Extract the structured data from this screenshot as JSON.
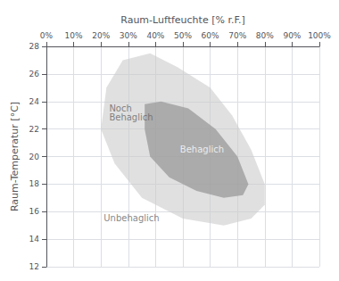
{
  "chart_data": {
    "type": "polygon",
    "xlabel": "Raum-Luftfeuchte [% r.F.]",
    "ylabel": "Raum-Temperatur [°C]",
    "xlim": [
      0,
      100
    ],
    "ylim": [
      12,
      28
    ],
    "xticks": [
      {
        "value": 0,
        "label": "0%"
      },
      {
        "value": 10,
        "label": "10%"
      },
      {
        "value": 20,
        "label": "20%"
      },
      {
        "value": 30,
        "label": "30%"
      },
      {
        "value": 40,
        "label": "40%"
      },
      {
        "value": 50,
        "label": "50%"
      },
      {
        "value": 60,
        "label": "60%"
      },
      {
        "value": 70,
        "label": "70%"
      },
      {
        "value": 80,
        "label": "80%"
      },
      {
        "value": 90,
        "label": "90%"
      },
      {
        "value": 100,
        "label": "100%"
      }
    ],
    "yticks": [
      12,
      14,
      16,
      18,
      20,
      22,
      24,
      26,
      28
    ],
    "grid": true,
    "series": [
      {
        "color": "#cccccc",
        "points": [
          [
            20,
            22
          ],
          [
            22,
            25
          ],
          [
            28,
            27
          ],
          [
            38,
            27.5
          ],
          [
            48,
            26.5
          ],
          [
            60,
            25.0
          ],
          [
            68,
            23.0
          ],
          [
            75,
            20.5
          ],
          [
            80,
            18.0
          ],
          [
            80,
            16.5
          ],
          [
            75,
            15.5
          ],
          [
            65,
            15.0
          ],
          [
            50,
            15.5
          ],
          [
            35,
            17.0
          ],
          [
            25,
            19.5
          ],
          [
            20,
            22
          ]
        ]
      },
      {
        "color": "#999999",
        "points": [
          [
            36,
            23.8
          ],
          [
            42,
            24.0
          ],
          [
            52,
            23.5
          ],
          [
            62,
            22.0
          ],
          [
            70,
            20.0
          ],
          [
            74,
            18.0
          ],
          [
            72,
            17.2
          ],
          [
            65,
            17.0
          ],
          [
            55,
            17.5
          ],
          [
            45,
            18.5
          ],
          [
            38,
            20.0
          ],
          [
            36,
            22.0
          ],
          [
            36,
            23.8
          ]
        ]
      }
    ],
    "annotations": [
      {
        "text": "Noch\nBehaglich",
        "x": 23,
        "y": 23.2,
        "color": "#666666"
      },
      {
        "text": "Behaglich",
        "x": 57,
        "y": 20.5,
        "color": "white"
      },
      {
        "text": "Unbehaglich",
        "x": 21,
        "y": 15.5,
        "color": "#666666"
      }
    ]
  }
}
